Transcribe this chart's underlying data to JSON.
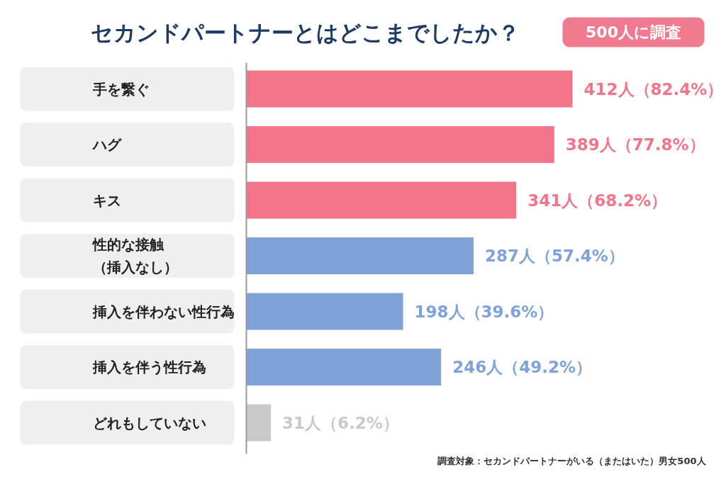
{
  "chart_data": {
    "type": "bar",
    "orientation": "horizontal",
    "title": "セカンドパートナーとはどこまでしたか？",
    "subtitle": "500人に調査",
    "categories": [
      "手を繋ぐ",
      "ハグ",
      "キス",
      "性的な接触（挿入なし）",
      "挿入を伴わない性行為",
      "挿入を伴う性行為",
      "どれもしていない"
    ],
    "values": [
      412,
      389,
      341,
      287,
      198,
      246,
      31
    ],
    "colors": [
      "#f2758a",
      "#f2758a",
      "#f2758a",
      "#7fa2d9",
      "#7fa2d9",
      "#7fa2d9",
      "#c9c9c9"
    ],
    "value_labels": [
      "412人（82.4%）",
      "389人（77.8%）",
      "341人（68.2%）",
      "287人（57.4%）",
      "198人（39.6%）",
      "246人（49.2%）",
      "31人（6.2%）"
    ],
    "annotations": [
      "調査対象：セカンドパートナーがいる（またはいた）男女500人"
    ]
  }
}
